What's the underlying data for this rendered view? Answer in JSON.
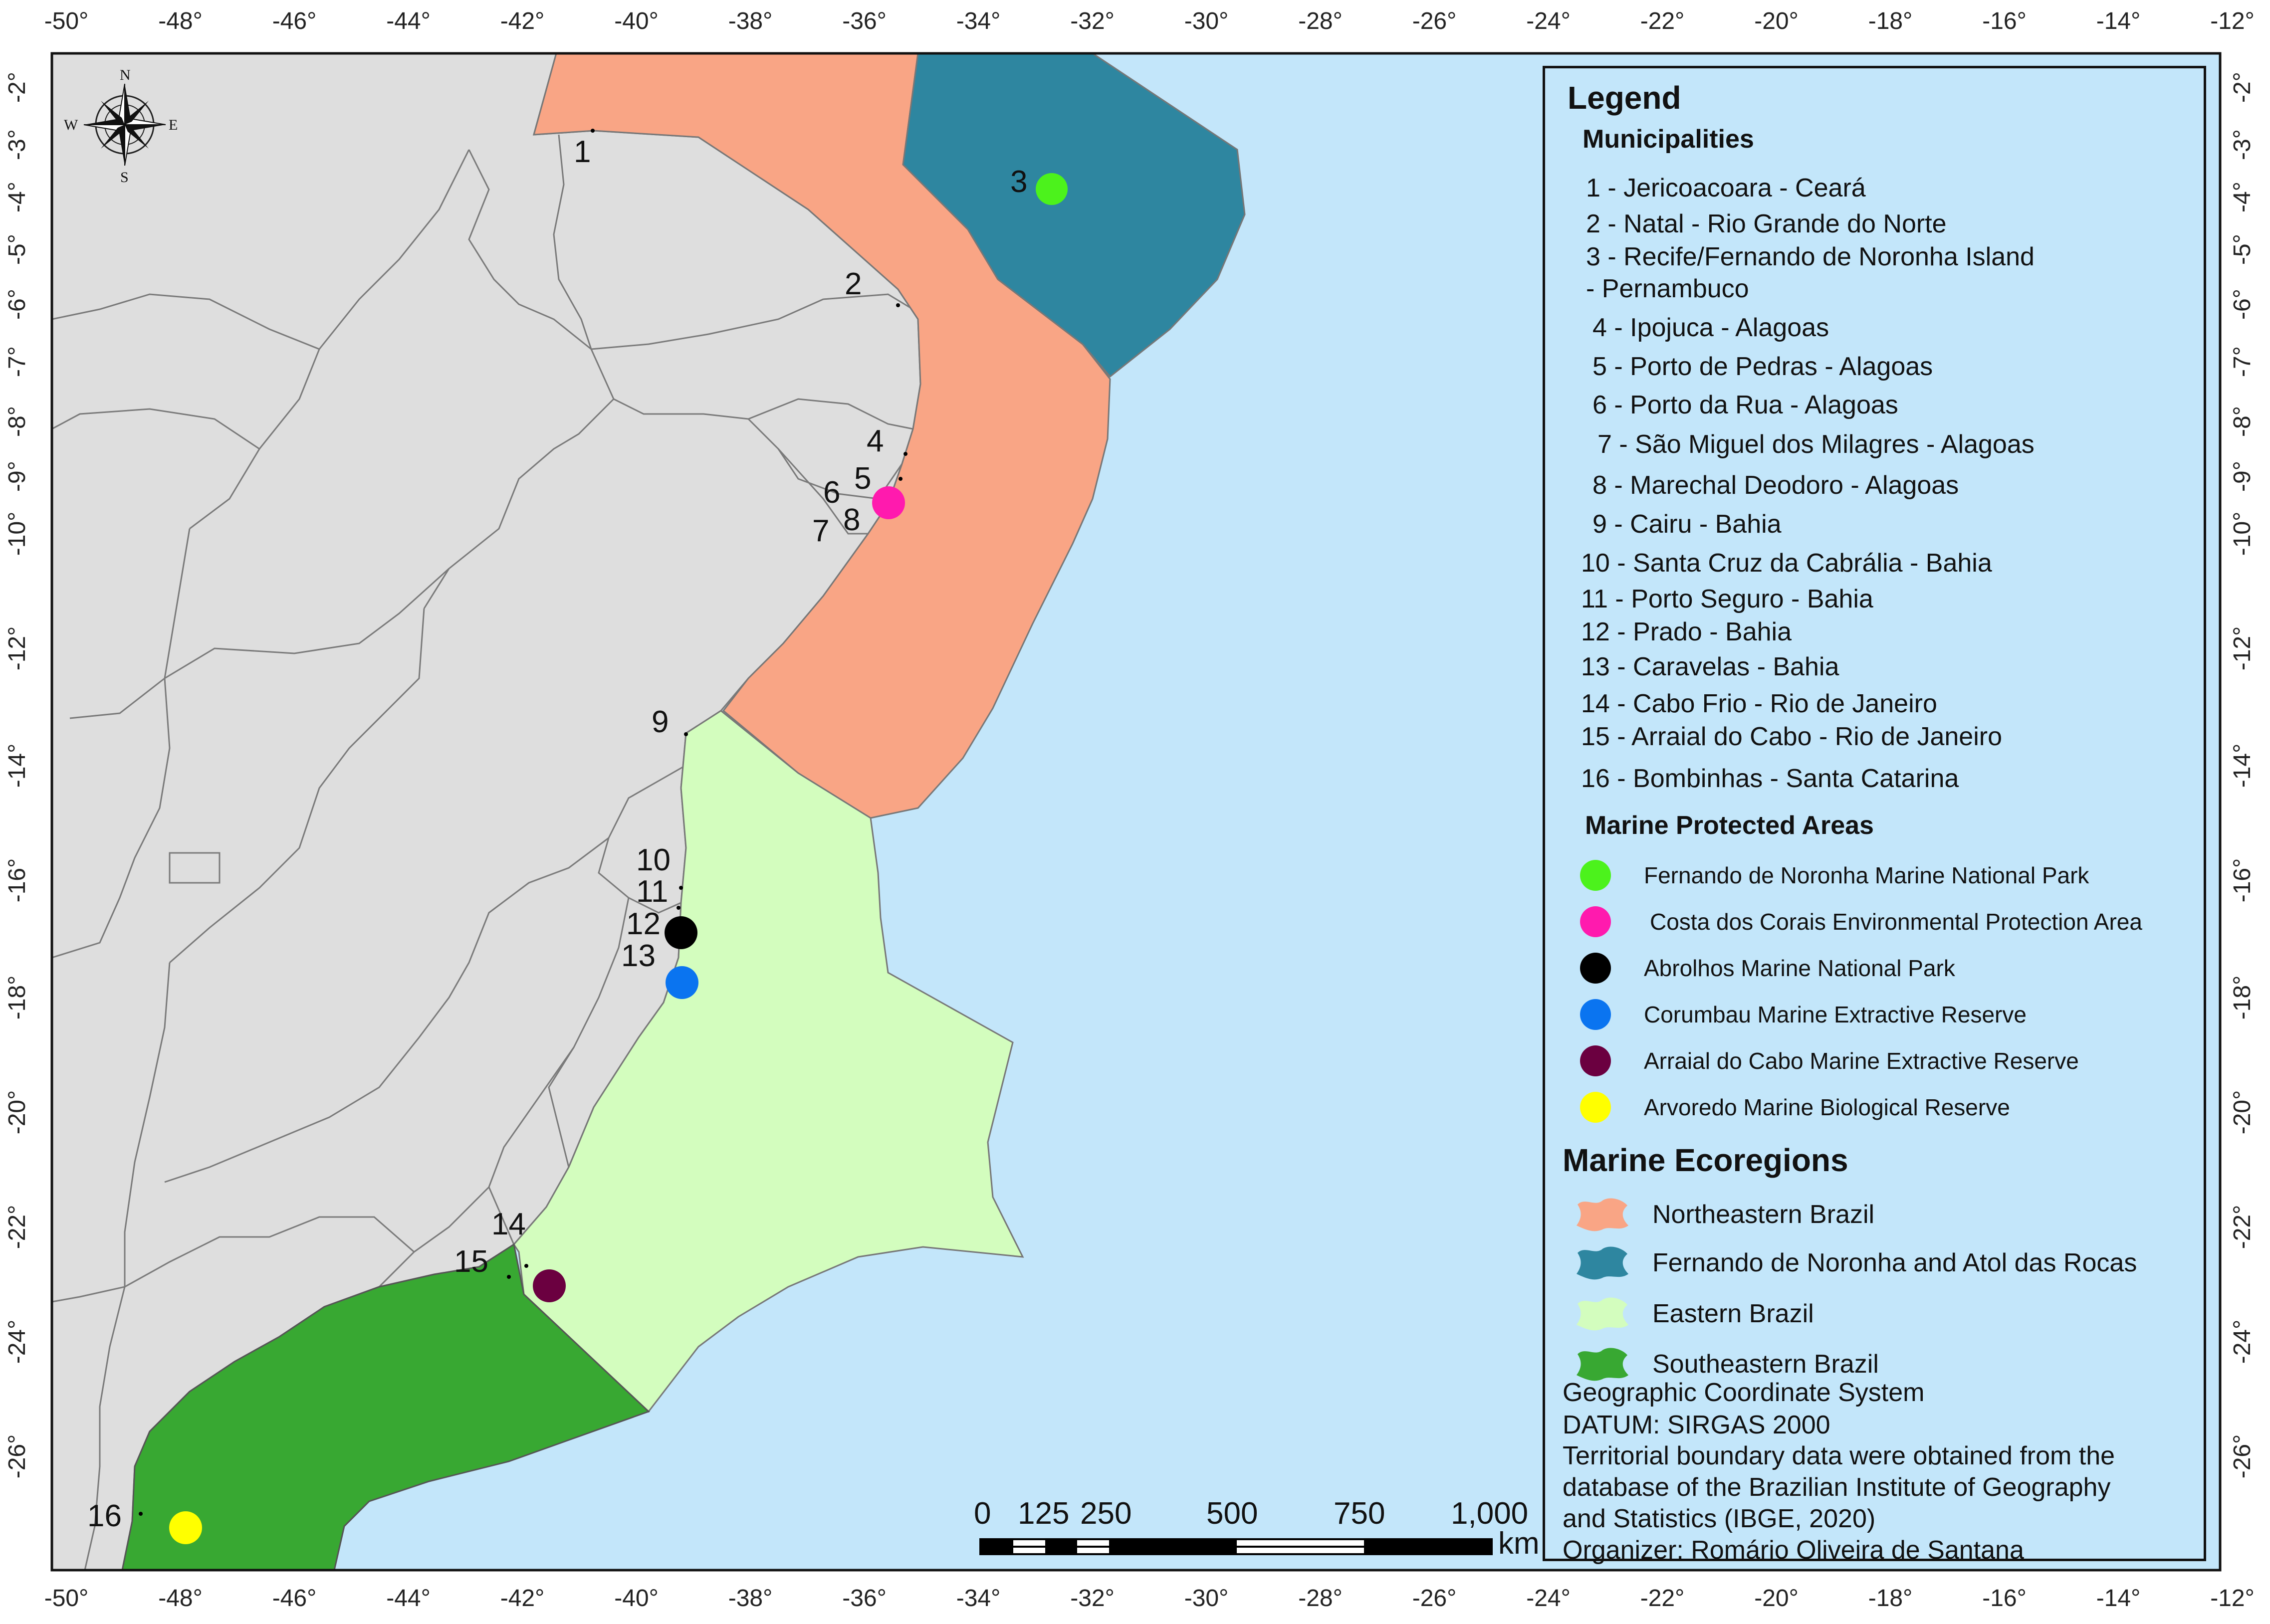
{
  "axes": {
    "top_longitudes": [
      "-50°",
      "-48°",
      "-46°",
      "-44°",
      "-42°",
      "-40°",
      "-38°",
      "-36°",
      "-34°",
      "-32°",
      "-30°",
      "-28°",
      "-26°",
      "-24°",
      "-22°",
      "-20°",
      "-18°",
      "-16°",
      "-14°",
      "-12°"
    ],
    "bottom_longitudes": [
      "-50°",
      "-48°",
      "-46°",
      "-44°",
      "-42°",
      "-40°",
      "-38°",
      "-36°",
      "-34°",
      "-32°",
      "-30°",
      "-28°",
      "-26°",
      "-24°",
      "-22°",
      "-20°",
      "-18°",
      "-16°",
      "-14°",
      "-12°"
    ],
    "latitudes": [
      "-2°",
      "-3°",
      "-4°",
      "-5°",
      "-6°",
      "-7°",
      "-8°",
      "-9°",
      "-10°",
      "-12°",
      "-14°",
      "-16°",
      "-18°",
      "-20°",
      "-22°",
      "-24°",
      "-26°"
    ]
  },
  "compass": {
    "n": "N",
    "s": "S",
    "e": "E",
    "w": "W"
  },
  "map_labels": [
    "1",
    "2",
    "3",
    "4",
    "5",
    "6",
    "7",
    "8",
    "9",
    "10",
    "11",
    "12",
    "13",
    "14",
    "15",
    "16"
  ],
  "scale_bar": {
    "labels": [
      "0",
      "125",
      "250",
      "500",
      "750",
      "1,000"
    ],
    "unit": "km"
  },
  "legend": {
    "title": "Legend",
    "municipalities_title": "Municipalities",
    "municipalities": [
      "1 - Jericoacoara - Ceará",
      "2 - Natal - Rio Grande do Norte",
      "3 - Recife/Fernando de Noronha Island",
      "- Pernambuco",
      "4 - Ipojuca - Alagoas",
      "5 - Porto de Pedras - Alagoas",
      "6 - Porto da Rua - Alagoas",
      "7 - São Miguel dos Milagres - Alagoas",
      "8 - Marechal Deodoro - Alagoas",
      "9 - Cairu - Bahia",
      "10 - Santa Cruz da Cabrália - Bahia",
      "11 - Porto Seguro - Bahia",
      "12 - Prado - Bahia",
      "13 - Caravelas - Bahia",
      "14 - Cabo Frio - Rio de Janeiro",
      "15 - Arraial do Cabo - Rio de Janeiro",
      "16 - Bombinhas - Santa Catarina"
    ],
    "mpa_title": "Marine Protected Areas",
    "mpas": [
      {
        "label": "Fernando de Noronha Marine National Park",
        "color": "#4cf21c"
      },
      {
        "label": "Costa dos Corais Environmental Protection Area",
        "color": "#ff1aae"
      },
      {
        "label": "Abrolhos Marine National Park",
        "color": "#000000"
      },
      {
        "label": "Corumbau Marine Extractive Reserve",
        "color": "#0a74f0"
      },
      {
        "label": "Arraial do Cabo Marine Extractive Reserve",
        "color": "#6b0040"
      },
      {
        "label": "Arvoredo Marine Biological Reserve",
        "color": "#ffff00"
      }
    ],
    "ecoregions_title": "Marine Ecoregions",
    "ecoregions": [
      {
        "label": "Northeastern Brazil",
        "color": "#f9a585"
      },
      {
        "label": "Fernando de Noronha and Atol das Rocas",
        "color": "#2e86a0"
      },
      {
        "label": "Eastern Brazil",
        "color": "#d3fdbe"
      },
      {
        "label": "Southeastern Brazil",
        "color": "#38a832"
      }
    ],
    "notes": [
      "Geographic Coordinate System",
      "DATUM: SIRGAS 2000",
      "Territorial boundary data were obtained from the",
      "database of the Brazilian Institute of Geography",
      "and Statistics (IBGE, 2020)",
      "Organizer: Romário Oliveira de Santana"
    ]
  },
  "colors": {
    "ocean": "#c3e6fa",
    "land": "#dedede",
    "boundary": "#7a7a7a"
  }
}
